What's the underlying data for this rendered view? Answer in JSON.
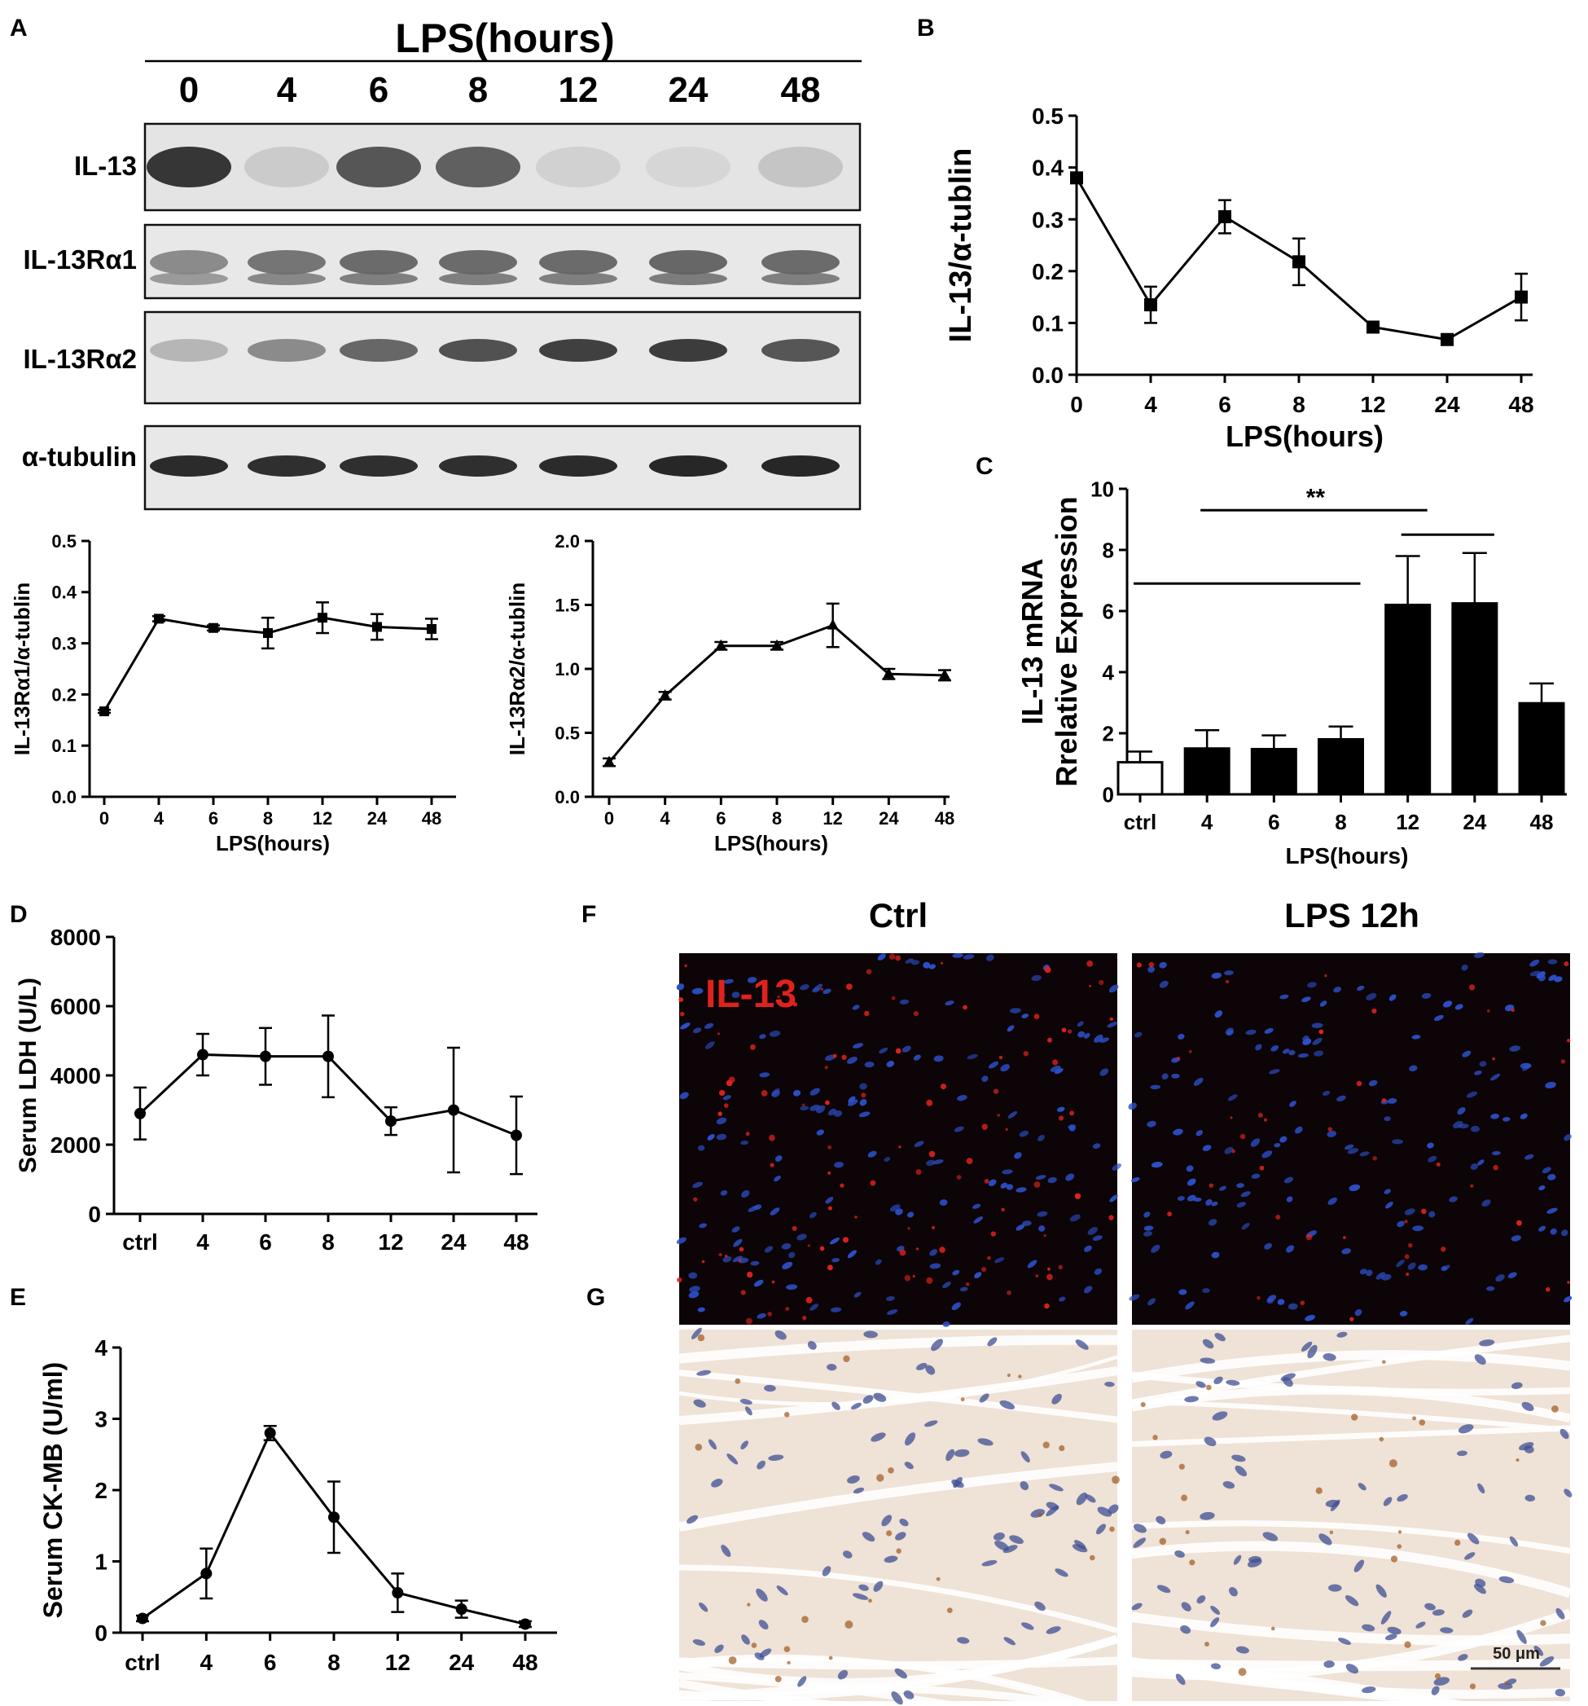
{
  "panel_letters": [
    "A",
    "B",
    "C",
    "D",
    "E",
    "F",
    "G"
  ],
  "blot": {
    "header": "LPS(hours)",
    "lanes": [
      "0",
      "4",
      "6",
      "8",
      "12",
      "24",
      "48"
    ],
    "rows": [
      {
        "label": "IL-13",
        "band_intensity": [
          0.85,
          0.15,
          0.7,
          0.65,
          0.12,
          0.1,
          0.18
        ]
      },
      {
        "label": "IL-13Rα1",
        "band_intensity": [
          0.45,
          0.55,
          0.6,
          0.6,
          0.6,
          0.62,
          0.6
        ]
      },
      {
        "label": "IL-13Rα2",
        "band_intensity": [
          0.25,
          0.45,
          0.62,
          0.72,
          0.8,
          0.82,
          0.7
        ]
      },
      {
        "label": "α-tubulin",
        "band_intensity": [
          0.9,
          0.88,
          0.88,
          0.88,
          0.9,
          0.92,
          0.92
        ]
      }
    ]
  },
  "chart_data": [
    {
      "id": "B",
      "type": "line",
      "x": [
        "0",
        "4",
        "6",
        "8",
        "12",
        "24",
        "48"
      ],
      "values": [
        0.38,
        0.135,
        0.305,
        0.218,
        0.092,
        0.068,
        0.15
      ],
      "errors": [
        0.005,
        0.035,
        0.032,
        0.045,
        0.01,
        0.006,
        0.045
      ],
      "marker": "square",
      "ylim": [
        0,
        0.5
      ],
      "yticks": [
        "0.0",
        "0.1",
        "0.2",
        "0.3",
        "0.4",
        "0.5"
      ],
      "xlabel": "LPS(hours)",
      "ylabel": "IL-13/α-tublin"
    },
    {
      "id": "C",
      "type": "bar",
      "categories": [
        "ctrl",
        "4",
        "6",
        "8",
        "12",
        "24",
        "48"
      ],
      "values": [
        1.05,
        1.5,
        1.48,
        1.8,
        6.2,
        6.25,
        2.98
      ],
      "errors": [
        0.35,
        0.6,
        0.45,
        0.42,
        1.6,
        1.65,
        0.65
      ],
      "fills": [
        "#ffffff",
        "#000000",
        "#000000",
        "#000000",
        "#000000",
        "#000000",
        "#000000"
      ],
      "ylim": [
        0,
        10
      ],
      "yticks": [
        "0",
        "2",
        "4",
        "6",
        "8",
        "10"
      ],
      "xlabel": "LPS(hours)",
      "ylabel": "IL-13 mRNA",
      "ylabel2": "Rrelative Expression",
      "significance": {
        "label": "**",
        "lines": [
          {
            "from": "ctrl",
            "to": "8",
            "y": 6.9
          },
          {
            "from": "4",
            "to": "12",
            "y": 9.3
          },
          {
            "from": "12",
            "to": "24",
            "y": 8.5
          }
        ]
      }
    },
    {
      "id": "A-R1",
      "type": "line",
      "x": [
        "0",
        "4",
        "6",
        "8",
        "12",
        "24",
        "48"
      ],
      "values": [
        0.167,
        0.348,
        0.33,
        0.32,
        0.35,
        0.332,
        0.328
      ],
      "errors": [
        0.003,
        0.005,
        0.005,
        0.03,
        0.03,
        0.025,
        0.02
      ],
      "marker": "square",
      "ylim": [
        0,
        0.5
      ],
      "yticks": [
        "0.0",
        "0.1",
        "0.2",
        "0.3",
        "0.4",
        "0.5"
      ],
      "xlabel": "LPS(hours)",
      "ylabel": "IL-13Rα1/α-tublin"
    },
    {
      "id": "A-R2",
      "type": "line",
      "x": [
        "0",
        "4",
        "6",
        "8",
        "12",
        "24",
        "48"
      ],
      "values": [
        0.27,
        0.79,
        1.18,
        1.18,
        1.34,
        0.96,
        0.95
      ],
      "errors": [
        0.03,
        0.03,
        0.03,
        0.03,
        0.17,
        0.04,
        0.04
      ],
      "marker": "triangle",
      "ylim": [
        0,
        2
      ],
      "yticks": [
        "0.0",
        "0.5",
        "1.0",
        "1.5",
        "2.0"
      ],
      "xlabel": "LPS(hours)",
      "ylabel": "IL-13Rα2/α-tublin"
    },
    {
      "id": "D",
      "type": "line",
      "x": [
        "ctrl",
        "4",
        "6",
        "8",
        "12",
        "24",
        "48"
      ],
      "values": [
        2900,
        4600,
        4550,
        4550,
        2680,
        3000,
        2270
      ],
      "errors": [
        750,
        600,
        820,
        1180,
        400,
        1800,
        1120
      ],
      "marker": "circle",
      "ylim": [
        0,
        8000
      ],
      "yticks": [
        "0",
        "2000",
        "4000",
        "6000",
        "8000"
      ],
      "xlabel": "",
      "ylabel": "Serum LDH (U/L)"
    },
    {
      "id": "E",
      "type": "line",
      "x": [
        "ctrl",
        "4",
        "6",
        "8",
        "12",
        "24",
        "48"
      ],
      "values": [
        0.2,
        0.83,
        2.8,
        1.62,
        0.56,
        0.33,
        0.12
      ],
      "errors": [
        0.04,
        0.35,
        0.1,
        0.5,
        0.27,
        0.12,
        0.04
      ],
      "marker": "circle",
      "ylim": [
        0,
        4
      ],
      "yticks": [
        "0",
        "1",
        "2",
        "3",
        "4"
      ],
      "xlabel": "",
      "ylabel": "Serum CK-MB (U/ml)"
    }
  ],
  "micrographs": {
    "column_titles": [
      "Ctrl",
      "LPS 12h"
    ],
    "stain_label": "IL-13",
    "scale_bar": "50 μm",
    "fluorescence_bg": "#0c0406",
    "nucleus_color": "#2c4fc8",
    "signal_color": "#e0221e",
    "tissue_bg": "#efe2d6",
    "ihc_nucleus_color": "#3d4f93",
    "ihc_stain_color": "#a0581e"
  }
}
